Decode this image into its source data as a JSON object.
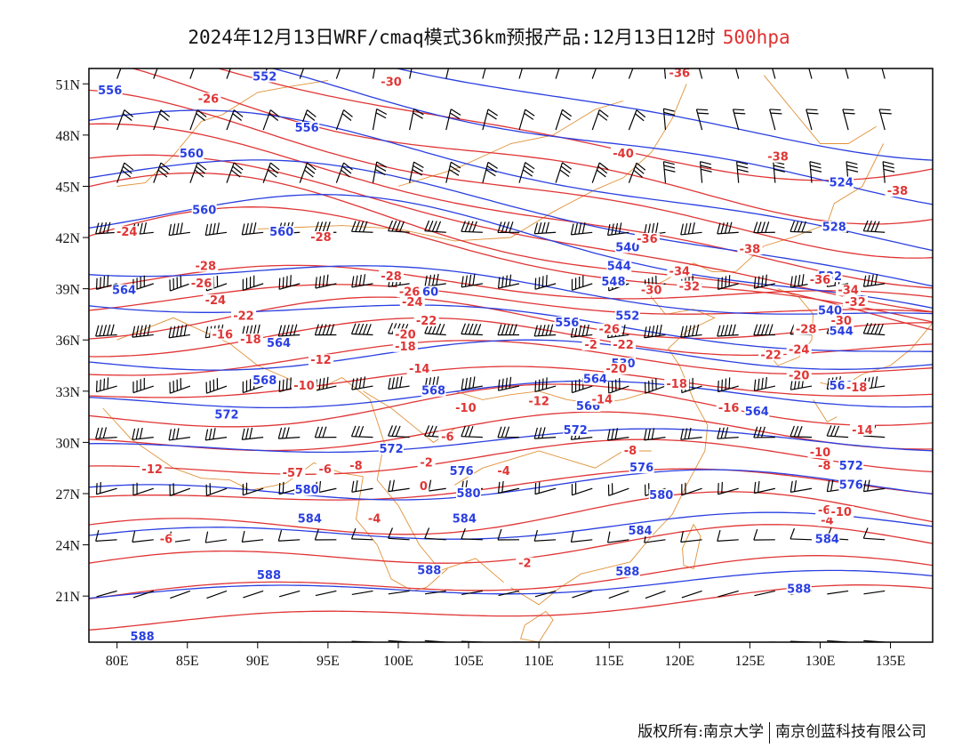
{
  "title": {
    "main": "2024年12月13日WRF/cmaq模式36km预报产品:12月13日12时",
    "level": "500hpa"
  },
  "colors": {
    "height_contour": "#2a3fe0",
    "temperature_contour": "#e03535",
    "coastline_border": "#e0923a",
    "wind_barb": "#000000",
    "level_text": "#e03030"
  },
  "axes": {
    "x_ticks": [
      "80E",
      "85E",
      "90E",
      "95E",
      "100E",
      "105E",
      "110E",
      "115E",
      "120E",
      "125E",
      "130E",
      "135E"
    ],
    "y_ticks": [
      "51N",
      "48N",
      "45N",
      "42N",
      "39N",
      "36N",
      "33N",
      "30N",
      "27N",
      "24N",
      "21N"
    ]
  },
  "height_labels": [
    {
      "text": "556",
      "lon": 79.5,
      "lat": 50.5
    },
    {
      "text": "552",
      "lon": 90.5,
      "lat": 51.3
    },
    {
      "text": "556",
      "lon": 93.5,
      "lat": 48.3
    },
    {
      "text": "560",
      "lon": 85.3,
      "lat": 46.8
    },
    {
      "text": "560",
      "lon": 86.2,
      "lat": 43.5
    },
    {
      "text": "560",
      "lon": 91.7,
      "lat": 42.2
    },
    {
      "text": "564",
      "lon": 80.5,
      "lat": 38.8
    },
    {
      "text": "560",
      "lon": 102,
      "lat": 38.7
    },
    {
      "text": "564",
      "lon": 91.5,
      "lat": 35.7
    },
    {
      "text": "568",
      "lon": 90.5,
      "lat": 33.5
    },
    {
      "text": "568",
      "lon": 102.5,
      "lat": 32.9
    },
    {
      "text": "572",
      "lon": 87.8,
      "lat": 31.5
    },
    {
      "text": "572",
      "lon": 99.5,
      "lat": 29.5
    },
    {
      "text": "576",
      "lon": 104.5,
      "lat": 28.2
    },
    {
      "text": "580",
      "lon": 93.5,
      "lat": 27.1
    },
    {
      "text": "580",
      "lon": 105,
      "lat": 26.9
    },
    {
      "text": "584",
      "lon": 93.7,
      "lat": 25.4
    },
    {
      "text": "584",
      "lon": 104.7,
      "lat": 25.4
    },
    {
      "text": "588",
      "lon": 90.8,
      "lat": 22.1
    },
    {
      "text": "588",
      "lon": 102.2,
      "lat": 22.4
    },
    {
      "text": "588",
      "lon": 81.8,
      "lat": 18.5
    },
    {
      "text": "544",
      "lon": 115.7,
      "lat": 40.2
    },
    {
      "text": "540",
      "lon": 116.3,
      "lat": 41.3
    },
    {
      "text": "548",
      "lon": 115.3,
      "lat": 39.3
    },
    {
      "text": "556",
      "lon": 112,
      "lat": 36.9
    },
    {
      "text": "552",
      "lon": 116.3,
      "lat": 37.3
    },
    {
      "text": "564",
      "lon": 114,
      "lat": 33.6
    },
    {
      "text": "566",
      "lon": 113.5,
      "lat": 32
    },
    {
      "text": "572",
      "lon": 112.6,
      "lat": 30.6
    },
    {
      "text": "576",
      "lon": 117.3,
      "lat": 28.4
    },
    {
      "text": "580",
      "lon": 118.7,
      "lat": 26.8
    },
    {
      "text": "584",
      "lon": 117.2,
      "lat": 24.7
    },
    {
      "text": "588",
      "lon": 116.3,
      "lat": 22.3
    },
    {
      "text": "530",
      "lon": 116,
      "lat": 34.5
    },
    {
      "text": "524",
      "lon": 131.5,
      "lat": 45.1
    },
    {
      "text": "528",
      "lon": 131,
      "lat": 42.5
    },
    {
      "text": "532",
      "lon": 130.7,
      "lat": 39.6
    },
    {
      "text": "540",
      "lon": 130.7,
      "lat": 37.6
    },
    {
      "text": "544",
      "lon": 131.5,
      "lat": 36.4
    },
    {
      "text": "560",
      "lon": 131.5,
      "lat": 33.2
    },
    {
      "text": "564",
      "lon": 125.5,
      "lat": 31.7
    },
    {
      "text": "572",
      "lon": 132.2,
      "lat": 28.5
    },
    {
      "text": "576",
      "lon": 132.2,
      "lat": 27.4
    },
    {
      "text": "584",
      "lon": 130.5,
      "lat": 24.2
    },
    {
      "text": "588",
      "lon": 128.5,
      "lat": 21.3
    }
  ],
  "temperature_labels": [
    {
      "text": "-26",
      "lon": 86.5,
      "lat": 50
    },
    {
      "text": "-30",
      "lon": 99.5,
      "lat": 51
    },
    {
      "text": "-36",
      "lon": 120,
      "lat": 51.5
    },
    {
      "text": "-40",
      "lon": 116,
      "lat": 46.8
    },
    {
      "text": "-38",
      "lon": 127,
      "lat": 46.6
    },
    {
      "text": "-38",
      "lon": 135.5,
      "lat": 44.6
    },
    {
      "text": "-24",
      "lon": 80.7,
      "lat": 42.2
    },
    {
      "text": "-28",
      "lon": 94.5,
      "lat": 41.9
    },
    {
      "text": "-36",
      "lon": 117.7,
      "lat": 41.8
    },
    {
      "text": "-38",
      "lon": 125,
      "lat": 41.2
    },
    {
      "text": "-28",
      "lon": 86.3,
      "lat": 40.2
    },
    {
      "text": "-28",
      "lon": 99.5,
      "lat": 39.6
    },
    {
      "text": "-34",
      "lon": 120,
      "lat": 39.9
    },
    {
      "text": "-36",
      "lon": 130,
      "lat": 39.4
    },
    {
      "text": "-34",
      "lon": 132,
      "lat": 38.8
    },
    {
      "text": "-26",
      "lon": 86,
      "lat": 39.2
    },
    {
      "text": "-26",
      "lon": 100.8,
      "lat": 38.7
    },
    {
      "text": "-30",
      "lon": 118,
      "lat": 38.8
    },
    {
      "text": "-32",
      "lon": 120.7,
      "lat": 39
    },
    {
      "text": "-32",
      "lon": 132.5,
      "lat": 38.1
    },
    {
      "text": "-24",
      "lon": 87,
      "lat": 38.2
    },
    {
      "text": "-24",
      "lon": 101,
      "lat": 38.1
    },
    {
      "text": "-22",
      "lon": 89,
      "lat": 37.3
    },
    {
      "text": "-22",
      "lon": 102,
      "lat": 37
    },
    {
      "text": "-26",
      "lon": 115,
      "lat": 36.5
    },
    {
      "text": "-28",
      "lon": 129,
      "lat": 36.5
    },
    {
      "text": "-30",
      "lon": 131.5,
      "lat": 37
    },
    {
      "text": "-16",
      "lon": 87.5,
      "lat": 36.2
    },
    {
      "text": "-18",
      "lon": 89.5,
      "lat": 35.9
    },
    {
      "text": "-20",
      "lon": 100.5,
      "lat": 36.2
    },
    {
      "text": "-18",
      "lon": 100.5,
      "lat": 35.5
    },
    {
      "text": "-2",
      "lon": 113.7,
      "lat": 35.6
    },
    {
      "text": "-22",
      "lon": 116,
      "lat": 35.6
    },
    {
      "text": "-24",
      "lon": 128.5,
      "lat": 35.3
    },
    {
      "text": "-22",
      "lon": 126.5,
      "lat": 35
    },
    {
      "text": "-12",
      "lon": 94.5,
      "lat": 34.7
    },
    {
      "text": "-14",
      "lon": 101.5,
      "lat": 34.2
    },
    {
      "text": "-20",
      "lon": 115.5,
      "lat": 34.2
    },
    {
      "text": "-20",
      "lon": 128.5,
      "lat": 33.8
    },
    {
      "text": "-10",
      "lon": 93.3,
      "lat": 33.2
    },
    {
      "text": "-18",
      "lon": 119.8,
      "lat": 33.3
    },
    {
      "text": "-18",
      "lon": 132.6,
      "lat": 33.1
    },
    {
      "text": "-12",
      "lon": 110,
      "lat": 32.3
    },
    {
      "text": "-14",
      "lon": 114.5,
      "lat": 32.4
    },
    {
      "text": "-16",
      "lon": 123.5,
      "lat": 31.9
    },
    {
      "text": "-10",
      "lon": 104.8,
      "lat": 31.9
    },
    {
      "text": "-14",
      "lon": 133,
      "lat": 30.6
    },
    {
      "text": "-6",
      "lon": 103.5,
      "lat": 30.2
    },
    {
      "text": "-8",
      "lon": 116.5,
      "lat": 29.4
    },
    {
      "text": "-10",
      "lon": 130,
      "lat": 29.3
    },
    {
      "text": "-8",
      "lon": 130.3,
      "lat": 28.5
    },
    {
      "text": "-2",
      "lon": 102,
      "lat": 28.7
    },
    {
      "text": "-4",
      "lon": 107.5,
      "lat": 28.2
    },
    {
      "text": "-6",
      "lon": 94.8,
      "lat": 28.3
    },
    {
      "text": "-8",
      "lon": 97,
      "lat": 28.5
    },
    {
      "text": "-12",
      "lon": 82.5,
      "lat": 28.3
    },
    {
      "text": "-57",
      "lon": 92.5,
      "lat": 28.1
    },
    {
      "text": "0",
      "lon": 101.8,
      "lat": 27.3
    },
    {
      "text": "-4",
      "lon": 98.3,
      "lat": 25.4
    },
    {
      "text": "-6",
      "lon": 83.5,
      "lat": 24.2
    },
    {
      "text": "-6",
      "lon": 130.3,
      "lat": 25.9
    },
    {
      "text": "-4",
      "lon": 130.5,
      "lat": 25.3
    },
    {
      "text": "-2",
      "lon": 109,
      "lat": 22.8
    },
    {
      "text": "-10",
      "lon": 131.5,
      "lat": 25.8
    }
  ],
  "copyright": {
    "left": "版权所有:南京大学",
    "right": "南京创蓝科技有限公司"
  }
}
